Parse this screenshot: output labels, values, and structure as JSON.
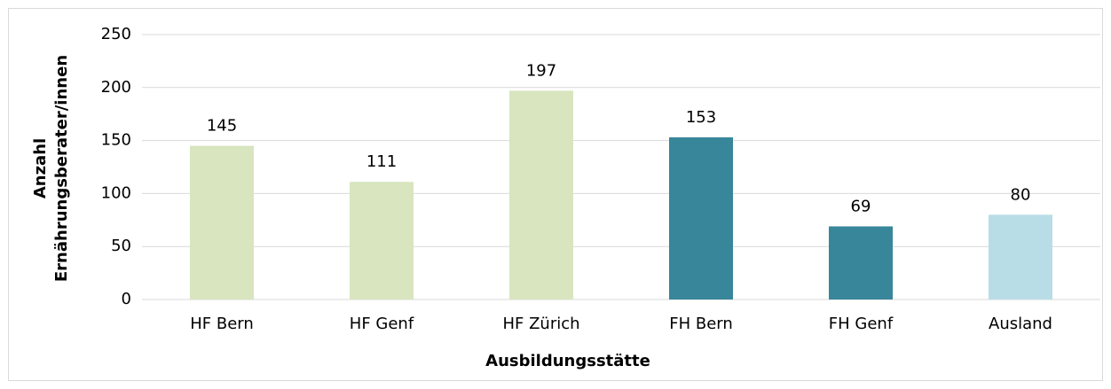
{
  "chart_data": {
    "type": "bar",
    "xlabel": "Ausbildungsstätte",
    "ylabel": [
      "Anzahl",
      "Ernährungsberater/innen"
    ],
    "categories": [
      "HF Bern",
      "HF Genf",
      "HF Zürich",
      "FH Bern",
      "FH Genf",
      "Ausland"
    ],
    "values": [
      145,
      111,
      197,
      153,
      69,
      80
    ],
    "colors": [
      "#d8e5bf",
      "#d8e5bf",
      "#d8e5bf",
      "#37869a",
      "#37869a",
      "#b8dde7"
    ],
    "ylim": [
      0,
      250
    ],
    "yticks": [
      0,
      50,
      100,
      150,
      200,
      250
    ],
    "grid": true
  }
}
